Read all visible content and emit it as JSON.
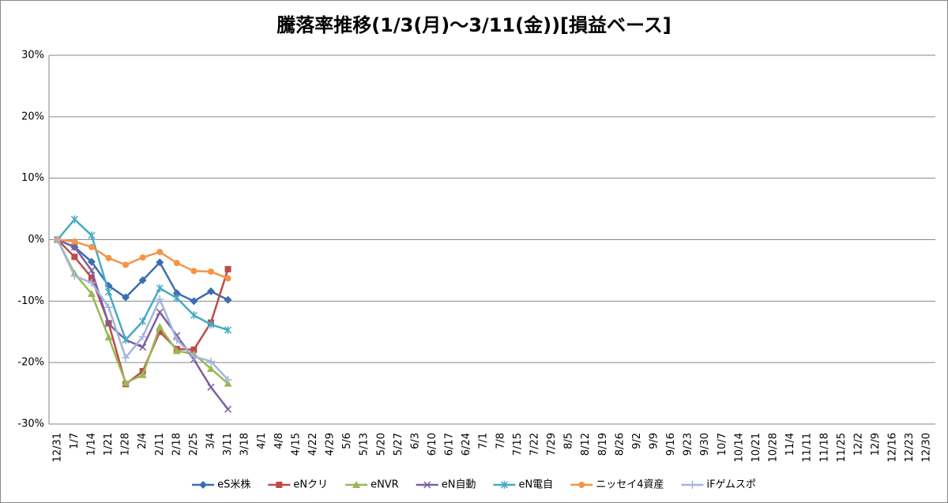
{
  "chart_data": {
    "type": "line",
    "title": "騰落率推移(1/3(月)～3/11(金))[損益ベース]",
    "categories": [
      "12/31",
      "1/7",
      "1/14",
      "1/21",
      "1/28",
      "2/4",
      "2/11",
      "2/18",
      "2/25",
      "3/4",
      "3/11",
      "3/18",
      "4/1",
      "4/8",
      "4/15",
      "4/22",
      "4/29",
      "5/6",
      "5/13",
      "5/20",
      "5/27",
      "6/3",
      "6/10",
      "6/17",
      "6/24",
      "7/1",
      "7/8",
      "7/15",
      "7/22",
      "7/29",
      "8/5",
      "8/12",
      "8/19",
      "8/26",
      "9/2",
      "9/9",
      "9/16",
      "9/23",
      "9/30",
      "10/7",
      "10/14",
      "10/21",
      "10/28",
      "11/4",
      "11/11",
      "11/18",
      "11/25",
      "12/2",
      "12/9",
      "12/16",
      "12/23",
      "12/30"
    ],
    "series": [
      {
        "name": "eS米株",
        "color": "#3c6db0",
        "marker": "diamond",
        "values": [
          0,
          -1.2,
          -3.6,
          -7.5,
          -9.4,
          -6.6,
          -3.7,
          -8.7,
          -10.0,
          -8.4,
          -9.8,
          null,
          null,
          null,
          null,
          null,
          null,
          null,
          null,
          null,
          null,
          null,
          null,
          null,
          null,
          null,
          null,
          null,
          null,
          null,
          null,
          null,
          null,
          null,
          null,
          null,
          null,
          null,
          null,
          null,
          null,
          null,
          null,
          null,
          null,
          null,
          null,
          null,
          null,
          null,
          null,
          null
        ]
      },
      {
        "name": "eNクリ",
        "color": "#be4b48",
        "marker": "square",
        "values": [
          0,
          -2.8,
          -6.2,
          -13.6,
          -23.5,
          -21.4,
          -15.0,
          -17.8,
          -17.9,
          -13.5,
          -4.8,
          null,
          null,
          null,
          null,
          null,
          null,
          null,
          null,
          null,
          null,
          null,
          null,
          null,
          null,
          null,
          null,
          null,
          null,
          null,
          null,
          null,
          null,
          null,
          null,
          null,
          null,
          null,
          null,
          null,
          null,
          null,
          null,
          null,
          null,
          null,
          null,
          null,
          null,
          null,
          null,
          null
        ]
      },
      {
        "name": "eNVR",
        "color": "#98b954",
        "marker": "triangle",
        "values": [
          0,
          -5.5,
          -8.8,
          -15.9,
          -23.3,
          -22.0,
          -14.2,
          -18.1,
          -18.6,
          -21.0,
          -23.4,
          null,
          null,
          null,
          null,
          null,
          null,
          null,
          null,
          null,
          null,
          null,
          null,
          null,
          null,
          null,
          null,
          null,
          null,
          null,
          null,
          null,
          null,
          null,
          null,
          null,
          null,
          null,
          null,
          null,
          null,
          null,
          null,
          null,
          null,
          null,
          null,
          null,
          null,
          null,
          null,
          null
        ]
      },
      {
        "name": "eN自動",
        "color": "#7d5fa0",
        "marker": "x",
        "values": [
          0,
          -1.2,
          -5.0,
          -13.7,
          -16.3,
          -17.5,
          -11.8,
          -15.6,
          -19.5,
          -24.0,
          -27.6,
          null,
          null,
          null,
          null,
          null,
          null,
          null,
          null,
          null,
          null,
          null,
          null,
          null,
          null,
          null,
          null,
          null,
          null,
          null,
          null,
          null,
          null,
          null,
          null,
          null,
          null,
          null,
          null,
          null,
          null,
          null,
          null,
          null,
          null,
          null,
          null,
          null,
          null,
          null,
          null,
          null
        ]
      },
      {
        "name": "eN電自",
        "color": "#46aac4",
        "marker": "star",
        "values": [
          0,
          3.3,
          0.7,
          -8.5,
          -16.3,
          -13.3,
          -7.9,
          -9.5,
          -12.3,
          -13.8,
          -14.7,
          null,
          null,
          null,
          null,
          null,
          null,
          null,
          null,
          null,
          null,
          null,
          null,
          null,
          null,
          null,
          null,
          null,
          null,
          null,
          null,
          null,
          null,
          null,
          null,
          null,
          null,
          null,
          null,
          null,
          null,
          null,
          null,
          null,
          null,
          null,
          null,
          null,
          null,
          null,
          null,
          null
        ]
      },
      {
        "name": "ニッセイ4資産",
        "color": "#f59446",
        "marker": "circle",
        "values": [
          0,
          -0.3,
          -1.2,
          -3.0,
          -4.1,
          -2.9,
          -2.0,
          -3.8,
          -5.1,
          -5.2,
          -6.3,
          null,
          null,
          null,
          null,
          null,
          null,
          null,
          null,
          null,
          null,
          null,
          null,
          null,
          null,
          null,
          null,
          null,
          null,
          null,
          null,
          null,
          null,
          null,
          null,
          null,
          null,
          null,
          null,
          null,
          null,
          null,
          null,
          null,
          null,
          null,
          null,
          null,
          null,
          null,
          null,
          null
        ]
      },
      {
        "name": "iFゲムスポ",
        "color": "#a3b5dc",
        "marker": "plus",
        "values": [
          0,
          -5.9,
          -7.0,
          -11.0,
          -19.2,
          -15.8,
          -9.7,
          -16.3,
          -19.0,
          -19.8,
          -22.8,
          null,
          null,
          null,
          null,
          null,
          null,
          null,
          null,
          null,
          null,
          null,
          null,
          null,
          null,
          null,
          null,
          null,
          null,
          null,
          null,
          null,
          null,
          null,
          null,
          null,
          null,
          null,
          null,
          null,
          null,
          null,
          null,
          null,
          null,
          null,
          null,
          null,
          null,
          null,
          null,
          null
        ]
      }
    ],
    "ylim": [
      -30,
      30
    ],
    "yticks": [
      {
        "value": -30,
        "label": "-30%"
      },
      {
        "value": -20,
        "label": "-20%"
      },
      {
        "value": -10,
        "label": "-10%"
      },
      {
        "value": 0,
        "label": "0%"
      },
      {
        "value": 10,
        "label": "10%"
      },
      {
        "value": 20,
        "label": "20%"
      },
      {
        "value": 30,
        "label": "30%"
      }
    ],
    "grid": true,
    "legend": "bottom"
  }
}
